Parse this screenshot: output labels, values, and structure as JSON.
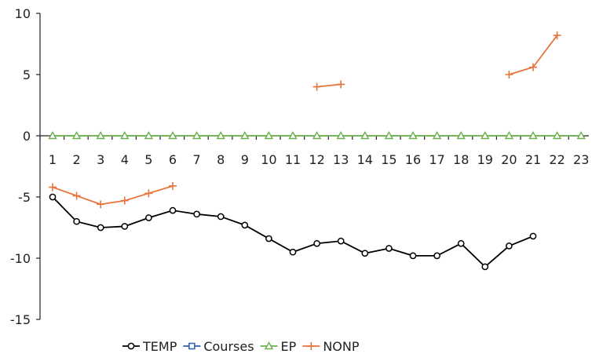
{
  "chart_data": {
    "type": "line",
    "title": "",
    "xlabel": "",
    "ylabel": "",
    "categories": [
      "1",
      "2",
      "3",
      "4",
      "5",
      "6",
      "7",
      "8",
      "9",
      "10",
      "11",
      "12",
      "13",
      "14",
      "15",
      "16",
      "17",
      "18",
      "19",
      "20",
      "21",
      "22",
      "23"
    ],
    "ylim": [
      -15,
      10
    ],
    "yticks": [
      10,
      5,
      0,
      -5,
      -10,
      -15
    ],
    "grid": false,
    "legend_position": "bottom",
    "series": [
      {
        "name": "TEMP",
        "color": "#000000",
        "marker": "circle",
        "values": [
          -5.0,
          -7.0,
          -7.5,
          -7.4,
          -6.7,
          -6.1,
          -6.4,
          -6.6,
          -7.3,
          -8.4,
          -9.5,
          -8.8,
          -8.6,
          -9.6,
          -9.2,
          -9.8,
          -9.8,
          -8.8,
          -10.7,
          -9.0,
          -8.2,
          null,
          null
        ]
      },
      {
        "name": "Courses",
        "color": "#2e5fa8",
        "marker": "square",
        "values": [
          null,
          null,
          null,
          null,
          null,
          null,
          null,
          null,
          null,
          null,
          null,
          null,
          null,
          null,
          null,
          null,
          null,
          null,
          null,
          null,
          null,
          null,
          null
        ]
      },
      {
        "name": "EP",
        "color": "#6ab04c",
        "marker": "triangle",
        "values": [
          0,
          0,
          0,
          0,
          0,
          0,
          0,
          0,
          0,
          0,
          0,
          0,
          0,
          0,
          0,
          0,
          0,
          0,
          0,
          0,
          0,
          0,
          0
        ]
      },
      {
        "name": "NONP",
        "color": "#e8743b",
        "marker": "plus",
        "values": [
          -4.2,
          -4.9,
          -5.6,
          -5.3,
          -4.7,
          -4.1,
          null,
          null,
          null,
          null,
          null,
          4.0,
          4.2,
          null,
          null,
          null,
          null,
          null,
          null,
          5.0,
          5.6,
          8.2,
          null
        ]
      }
    ]
  }
}
